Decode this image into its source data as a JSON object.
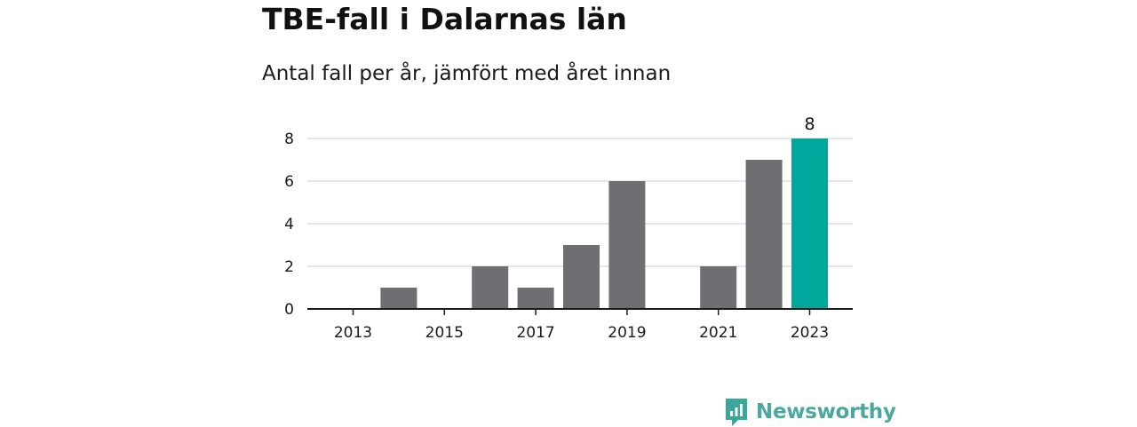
{
  "header": {
    "title": "TBE-fall i Dalarnas län",
    "subtitle": "Antal fall per år, jämfört med året innan"
  },
  "brand": {
    "name": "Newsworthy",
    "icon": "newsworthy-logo-icon",
    "color": "#3aa79c"
  },
  "colors": {
    "bar": "#6e6e73",
    "highlight": "#00a79a",
    "grid": "#dddddd",
    "axis": "#1a1a1a"
  },
  "chart_data": {
    "type": "bar",
    "title": "TBE-fall i Dalarnas län",
    "subtitle": "Antal fall per år, jämfört med året innan",
    "xlabel": "",
    "ylabel": "",
    "categories": [
      "2013",
      "2014",
      "2015",
      "2016",
      "2017",
      "2018",
      "2019",
      "2020",
      "2021",
      "2022",
      "2023"
    ],
    "values": [
      0,
      1,
      0,
      2,
      1,
      3,
      6,
      0,
      2,
      7,
      8
    ],
    "highlight_index": 10,
    "x_tick_labels": [
      "2013",
      "2015",
      "2017",
      "2019",
      "2021",
      "2023"
    ],
    "y_ticks": [
      0,
      2,
      4,
      6,
      8
    ],
    "ylim": [
      0,
      8
    ],
    "grid": true,
    "data_labels": [
      {
        "category": "2023",
        "text": "8"
      }
    ]
  }
}
